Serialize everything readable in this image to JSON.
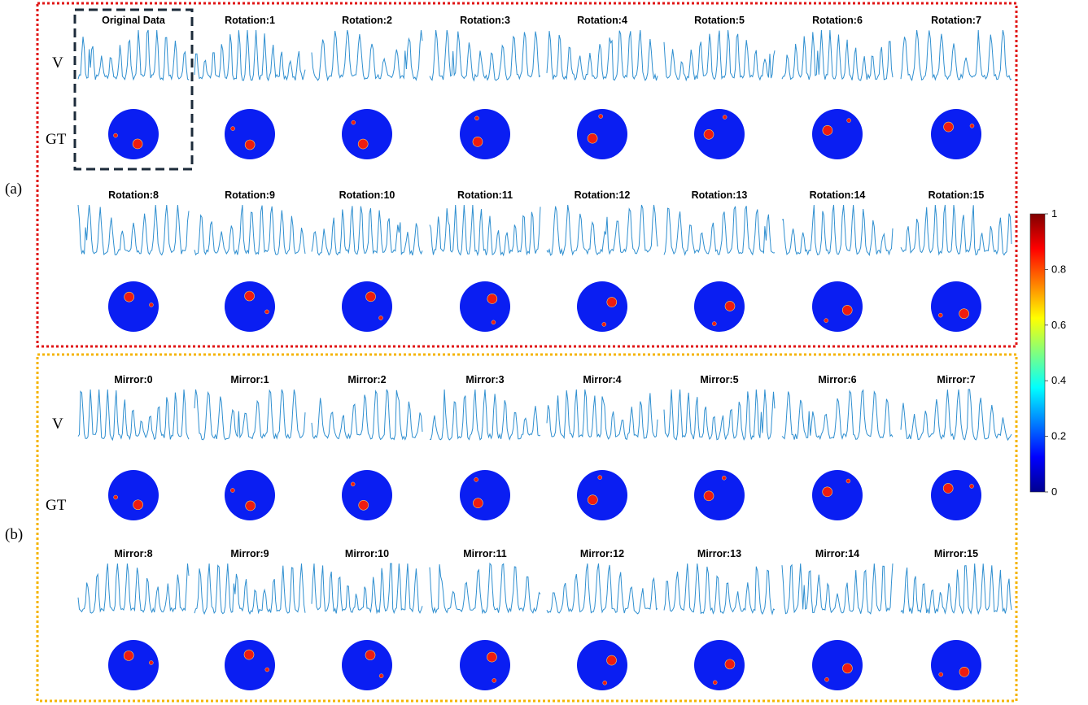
{
  "colors": {
    "panel_a_border": "#e01515",
    "panel_b_border": "#f5b400",
    "original_highlight": "#1c2b3a",
    "signal": "#2f8fd0",
    "disk": "#0a1ef2",
    "inclusion": "#ee1c10"
  },
  "panel_a": {
    "label": "(a)",
    "row_v_label": "V",
    "row_gt_label": "GT",
    "titles": [
      "Original Data",
      "Rotation:1",
      "Rotation:2",
      "Rotation:3",
      "Rotation:4",
      "Rotation:5",
      "Rotation:6",
      "Rotation:7",
      "Rotation:8",
      "Rotation:9",
      "Rotation:10",
      "Rotation:11",
      "Rotation:12",
      "Rotation:13",
      "Rotation:14",
      "Rotation:15"
    ]
  },
  "panel_b": {
    "label": "(b)",
    "row_v_label": "V",
    "row_gt_label": "GT",
    "titles": [
      "Mirror:0",
      "Mirror:1",
      "Mirror:2",
      "Mirror:3",
      "Mirror:4",
      "Mirror:5",
      "Mirror:6",
      "Mirror:7",
      "Mirror:8",
      "Mirror:9",
      "Mirror:10",
      "Mirror:11",
      "Mirror:12",
      "Mirror:13",
      "Mirror:14",
      "Mirror:15"
    ]
  },
  "colorbar": {
    "ticks": [
      "1",
      "0.8",
      "0.6",
      "0.4",
      "0.2",
      "0"
    ],
    "colormap": "jet"
  }
}
